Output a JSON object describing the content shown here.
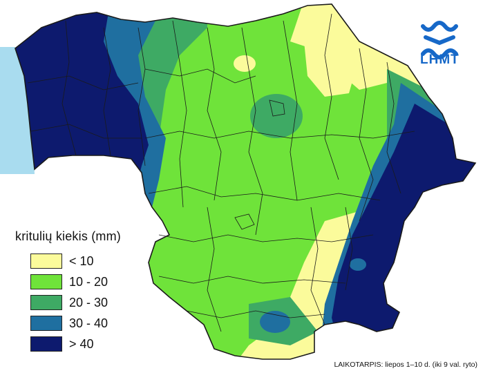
{
  "legend": {
    "title": "kritulių kiekis (mm)",
    "items": [
      {
        "label": "< 10",
        "color": "#fbfb9b"
      },
      {
        "label": "10 - 20",
        "color": "#6fe33a"
      },
      {
        "label": "20 - 30",
        "color": "#3eaa64"
      },
      {
        "label": "30 - 40",
        "color": "#1f6fa0"
      },
      {
        "label": "> 40",
        "color": "#0d1a6e"
      }
    ]
  },
  "logo": {
    "text": "LHMT",
    "color": "#1668c8"
  },
  "period": "LAIKOTARPIS: liepos 1–10 d. (iki 9 val. ryto)",
  "colors": {
    "sea": "#a9dcef",
    "border": "#1a1a1a",
    "background": "#ffffff"
  }
}
